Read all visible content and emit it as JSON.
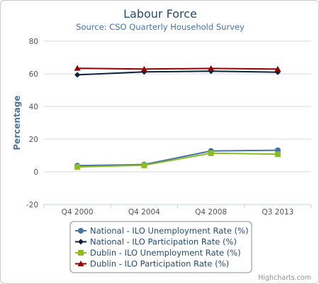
{
  "chart_data": {
    "type": "line",
    "title": "Labour Force",
    "subtitle": "Source: CSO Quarterly Household Survey",
    "xlabel": "",
    "ylabel": "Percentage",
    "categories": [
      "Q4 2000",
      "Q4 2004",
      "Q4 2008",
      "Q3 2013"
    ],
    "ylim": [
      -20,
      80
    ],
    "yticks": [
      -20,
      0,
      20,
      40,
      60,
      80
    ],
    "grid": true,
    "legend_position": "bottom",
    "series": [
      {
        "name": "National - ILO Unemployment Rate (%)",
        "values": [
          3.8,
          4.5,
          12.8,
          13.2
        ],
        "color": "#4572a7",
        "marker": "circle"
      },
      {
        "name": "National - ILO Participation Rate (%)",
        "values": [
          59.4,
          61.2,
          61.6,
          61.0
        ],
        "color": "#0d233a",
        "marker": "diamond"
      },
      {
        "name": "Dublin - ILO Unemployment Rate (%)",
        "values": [
          3.0,
          4.0,
          11.4,
          10.8
        ],
        "color": "#8bbc21",
        "marker": "square"
      },
      {
        "name": "Dublin - ILO Participation Rate (%)",
        "values": [
          63.4,
          62.9,
          63.3,
          62.9
        ],
        "color": "#910000",
        "marker": "triangle"
      }
    ]
  },
  "credit": "Highcharts.com"
}
